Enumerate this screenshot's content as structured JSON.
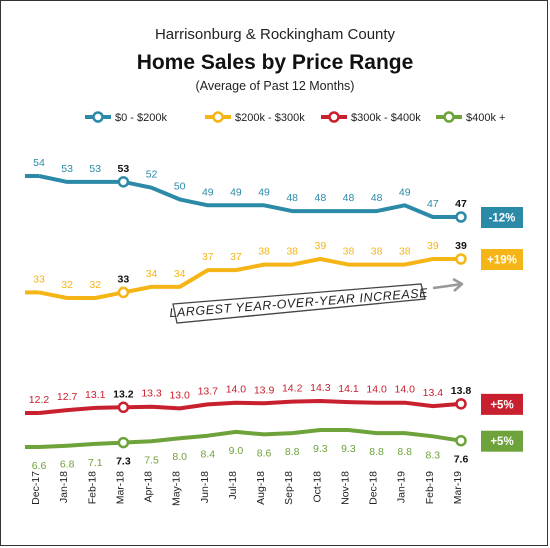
{
  "chart_data": {
    "type": "line",
    "title_line1": "Harrisonburg & Rockingham County",
    "title": "Home Sales by Price Range",
    "subtitle": "(Average of Past 12 Months)",
    "annotation": "LARGEST YEAR-OVER-YEAR INCREASE",
    "x": [
      "Dec-17",
      "Jan-18",
      "Feb-18",
      "Mar-18",
      "Apr-18",
      "May-18",
      "Jun-18",
      "Jul-18",
      "Aug-18",
      "Sep-18",
      "Oct-18",
      "Nov-18",
      "Dec-18",
      "Jan-19",
      "Feb-19",
      "Mar-19"
    ],
    "highlight_indices": [
      3,
      15
    ],
    "grid": false,
    "legend_placement": "top",
    "series": [
      {
        "name": "$0 - $200k",
        "color": "#2a8aa8",
        "values": [
          54,
          53,
          53,
          53,
          52,
          50,
          49,
          49,
          49,
          48,
          48,
          48,
          48,
          49,
          47,
          47
        ],
        "labels": [
          "54",
          "53",
          "53",
          "53",
          "52",
          "50",
          "49",
          "49",
          "49",
          "48",
          "48",
          "48",
          "48",
          "49",
          "47",
          "47"
        ],
        "change_label": "-12%"
      },
      {
        "name": "$200k - $300k",
        "color": "#f5b516",
        "values": [
          33,
          32,
          32,
          33,
          34,
          34,
          37,
          37,
          38,
          38,
          39,
          38,
          38,
          38,
          39,
          39
        ],
        "labels": [
          "33",
          "32",
          "32",
          "33",
          "34",
          "34",
          "37",
          "37",
          "38",
          "38",
          "39",
          "38",
          "38",
          "38",
          "39",
          "39"
        ],
        "change_label": "+19%"
      },
      {
        "name": "$300k - $400k",
        "color": "#c8202e",
        "values": [
          12.2,
          12.7,
          13.1,
          13.2,
          13.3,
          13.0,
          13.7,
          14.0,
          13.9,
          14.2,
          14.3,
          14.1,
          14.0,
          14.0,
          13.4,
          13.8
        ],
        "labels": [
          "12.2",
          "12.7",
          "13.1",
          "13.2",
          "13.3",
          "13.0",
          "13.7",
          "14.0",
          "13.9",
          "14.2",
          "14.3",
          "14.1",
          "14.0",
          "14.0",
          "13.4",
          "13.8"
        ],
        "change_label": "+5%"
      },
      {
        "name": "$400k +",
        "color": "#6ea23a",
        "values": [
          6.6,
          6.8,
          7.1,
          7.3,
          7.5,
          8.0,
          8.4,
          9.0,
          8.6,
          8.8,
          9.3,
          9.3,
          8.8,
          8.8,
          8.3,
          7.6
        ],
        "labels": [
          "6.6",
          "6.8",
          "7.1",
          "7.3",
          "7.5",
          "8.0",
          "8.4",
          "9.0",
          "8.6",
          "8.8",
          "9.3",
          "9.3",
          "8.8",
          "8.8",
          "8.3",
          "7.6"
        ],
        "change_label": "+5%"
      }
    ]
  }
}
